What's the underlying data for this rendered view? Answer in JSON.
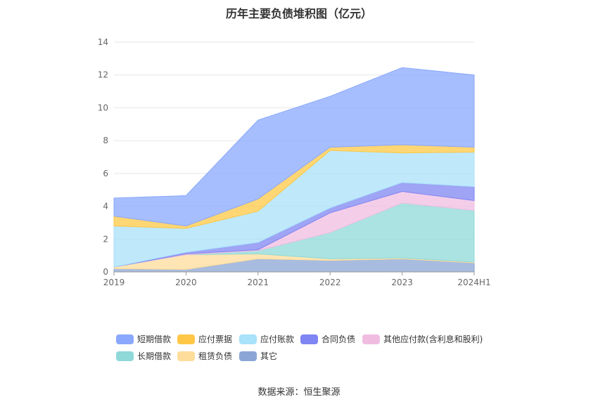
{
  "chart_data": {
    "type": "area",
    "stacked": true,
    "title": "历年主要负债堆积图（亿元）",
    "xlabel": "",
    "ylabel": "",
    "categories": [
      "2019",
      "2020",
      "2021",
      "2022",
      "2023",
      "2024H1"
    ],
    "ylim": [
      0,
      14
    ],
    "yticks": [
      "0",
      "2",
      "4",
      "6",
      "8",
      "10",
      "12",
      "14"
    ],
    "grid": true,
    "legend_position": "bottom",
    "series": [
      {
        "name": "其它",
        "color": "#8ba6d6",
        "values": [
          0.2,
          0.15,
          0.8,
          0.7,
          0.8,
          0.55
        ]
      },
      {
        "name": "租赁负债",
        "color": "#fedc9a",
        "values": [
          0.1,
          0.9,
          0.3,
          0.1,
          0.05,
          0.05
        ]
      },
      {
        "name": "长期借款",
        "color": "#8fd9d8",
        "values": [
          0.0,
          0.0,
          0.2,
          1.6,
          3.35,
          3.15
        ]
      },
      {
        "name": "其他应付款(含利息和股利)",
        "color": "#f0bde1",
        "values": [
          0.0,
          0.05,
          0.05,
          1.2,
          0.7,
          0.6
        ]
      },
      {
        "name": "合同负债",
        "color": "#7f85f2",
        "values": [
          0.0,
          0.1,
          0.45,
          0.3,
          0.55,
          0.85
        ]
      },
      {
        "name": "应付账款",
        "color": "#a9e1fa",
        "values": [
          2.5,
          1.45,
          1.9,
          3.5,
          1.8,
          2.1
        ]
      },
      {
        "name": "应付票据",
        "color": "#fec846",
        "values": [
          0.6,
          0.15,
          0.75,
          0.2,
          0.5,
          0.3
        ]
      },
      {
        "name": "短期借款",
        "color": "#8aa8fd",
        "values": [
          1.1,
          1.85,
          4.8,
          3.1,
          4.7,
          4.4
        ]
      }
    ],
    "legend_order": [
      "短期借款",
      "应付票据",
      "应付账款",
      "合同负债",
      "其他应付款(含利息和股利)",
      "长期借款",
      "租赁负债",
      "其它"
    ]
  },
  "source_note": "数据来源：恒生聚源"
}
